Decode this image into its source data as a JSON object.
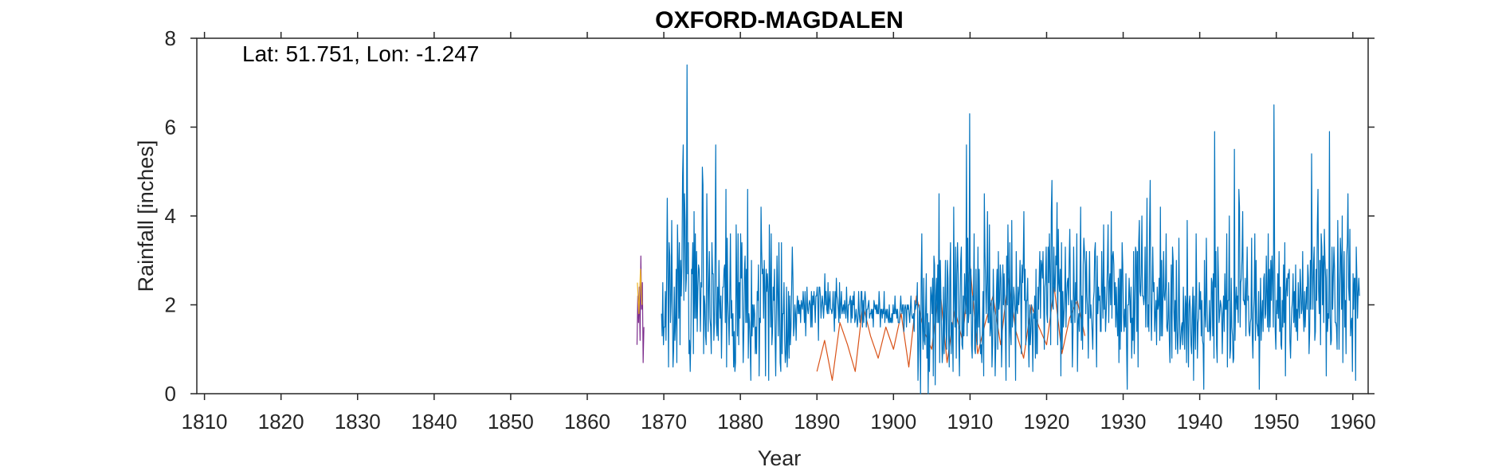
{
  "chart_data": {
    "type": "line",
    "title": "OXFORD-MAGDALEN",
    "annotation": "Lat: 51.751, Lon: -1.247",
    "xlabel": "Year",
    "ylabel": "Rainfall [inches]",
    "xlim": [
      1809,
      1962
    ],
    "ylim": [
      0,
      8
    ],
    "xticks": [
      1810,
      1820,
      1830,
      1840,
      1850,
      1860,
      1870,
      1880,
      1890,
      1900,
      1910,
      1920,
      1930,
      1940,
      1950,
      1960
    ],
    "yticks": [
      0,
      2,
      4,
      6,
      8
    ],
    "grid": false,
    "colors": {
      "main": "#0072BD",
      "secondary": "#D95319",
      "tertiary": "#EDB120",
      "fourth": "#7E2F8E"
    },
    "series": [
      {
        "color": "#7E2F8E",
        "x": [
          1866.5,
          1866.6,
          1866.7,
          1866.8,
          1866.9,
          1867.0,
          1867.1,
          1867.2,
          1867.3,
          1867.4
        ],
        "y": [
          1.1,
          2.2,
          1.6,
          2.4,
          1.2,
          3.1,
          1.9,
          2.5,
          0.7,
          1.5
        ]
      },
      {
        "color": "#EDB120",
        "x": [
          1866.55,
          1866.75,
          1866.95,
          1867.15
        ],
        "y": [
          2.5,
          1.8,
          2.8,
          2.0
        ]
      },
      {
        "color": "#D95319",
        "x": [
          1890.0,
          1891.0,
          1892.0,
          1893.0,
          1894.0,
          1895.0,
          1896.0,
          1897.0,
          1898.0,
          1899.0,
          1900.0,
          1901.0,
          1902.0,
          1903.0,
          1904.0,
          1905.0,
          1906.0,
          1907.0,
          1908.0,
          1909.0,
          1910.0,
          1911.0,
          1912.0,
          1913.0,
          1914.0,
          1915.0,
          1916.0,
          1917.0,
          1918.0,
          1919.0,
          1920.0,
          1921.0,
          1922.0,
          1923.0,
          1924.0,
          1925.0
        ],
        "y": [
          0.5,
          1.2,
          0.3,
          1.6,
          1.1,
          0.5,
          2.0,
          1.3,
          0.8,
          1.5,
          1.0,
          1.8,
          0.6,
          2.2,
          1.4,
          1.0,
          2.5,
          0.7,
          1.9,
          1.2,
          2.9,
          0.9,
          1.6,
          2.2,
          1.1,
          2.6,
          1.4,
          0.8,
          2.0,
          1.5,
          1.1,
          2.4,
          0.9,
          1.7,
          2.1,
          1.3
        ]
      },
      {
        "color": "#0072BD",
        "x_start": 1869.7,
        "x_step": 0.08333,
        "y": [
          1.8,
          1.3,
          2.5,
          1.1,
          1.5,
          1.5,
          2.3,
          1.2,
          2.6,
          4.4,
          2.7,
          0.6,
          3.4,
          3.1,
          1.6,
          2.1,
          3.9,
          2.0,
          0.6,
          1.0,
          2.4,
          1.2,
          1.6,
          2.8,
          0.7,
          3.8,
          3.0,
          1.7,
          3.4,
          1.1,
          3.0,
          2.2,
          2.9,
          4.9,
          5.6,
          2.1,
          4.5,
          3.9,
          2.3,
          2.6,
          7.4,
          2.7,
          3.4,
          0.9,
          1.2,
          0.5,
          1.3,
          2.8,
          2.7,
          3.4,
          0.9,
          4.1,
          1.7,
          3.6,
          1.7,
          3.2,
          1.4,
          2.4,
          2.9,
          2.8,
          2.3,
          1.4,
          2.5,
          2.4,
          5.1,
          4.7,
          0.9,
          2.2,
          2.0,
          1.3,
          1.1,
          4.5,
          3.0,
          1.4,
          2.4,
          3.2,
          1.7,
          1.5,
          0.9,
          3.4,
          2.7,
          2.7,
          1.2,
          1.6,
          3.2,
          5.6,
          1.6,
          1.3,
          2.4,
          1.2,
          3.0,
          2.1,
          1.7,
          2.2,
          0.8,
          1.8,
          2.4,
          2.4,
          2.8,
          2.9,
          1.6,
          4.6,
          0.6,
          3.5,
          2.1,
          1.7,
          1.1,
          2.3,
          3.6,
          1.7,
          2.1,
          1.3,
          1.8,
          0.6,
          1.4,
          0.5,
          0.7,
          3.8,
          2.3,
          1.3,
          3.6,
          1.1,
          2.5,
          1.7,
          3.6,
          2.6,
          3.4,
          1.9,
          0.7,
          1.4,
          2.8,
          3.1,
          1.6,
          2.8,
          1.6,
          4.6,
          0.8,
          1.8,
          1.6,
          1.1,
          0.3,
          3.0,
          1.3,
          2.0,
          1.5,
          2.0,
          1.8,
          0.9,
          1.5,
          0.9,
          2.3,
          2.1,
          2.9,
          0.4,
          1.7,
          1.6,
          4.2,
          3.2,
          2.7,
          2.8,
          1.7,
          3.0,
          2.4,
          0.4,
          2.8,
          2.3,
          2.7,
          2.3,
          0.3,
          3.8,
          2.6,
          1.5,
          3.6,
          1.1,
          1.4,
          2.4,
          2.1,
          2.8,
          1.3,
          0.4,
          1.8,
          3.1,
          2.2,
          1.3,
          3.4,
          1.9,
          0.7,
          0.5,
          3.4,
          0.9,
          1.8,
          1.8,
          2.5,
          1.2,
          0.7,
          0.9,
          2.4,
          0.6,
          1.1,
          2.3,
          0.8,
          2.2,
          1.1,
          1.5,
          2.4,
          3.3,
          2.6,
          1.3,
          1.5,
          2.0,
          1.8,
          1.2,
          1.9,
          2.2,
          1.8,
          2.1,
          1.8,
          2.0,
          1.6,
          2.1,
          2.0,
          1.9,
          2.3,
          2.0,
          1.6,
          2.3,
          1.3,
          1.9,
          2.4,
          1.9,
          1.8,
          2.0,
          2.1,
          2.0,
          1.5,
          2.3,
          1.5,
          2.2,
          2.0,
          2.3,
          2.0,
          1.6,
          2.2,
          2.2,
          2.4,
          2.1,
          1.2,
          2.4,
          2.4,
          2.2,
          1.7,
          2.0,
          2.2,
          2.0,
          1.7,
          2.0,
          2.7,
          2.0,
          2.3,
          1.9,
          1.8,
          2.5,
          1.8,
          2.1,
          2.3,
          1.9,
          1.9,
          1.8,
          1.9,
          2.3,
          1.9,
          1.4,
          2.3,
          1.7,
          2.6,
          2.2,
          2.1,
          1.9,
          1.6,
          2.5,
          1.7,
          2.0,
          2.3,
          1.8,
          1.9,
          2.0,
          1.8,
          2.1,
          1.9,
          1.7,
          2.4,
          1.9,
          1.6,
          2.0,
          2.0,
          2.1,
          2.2,
          1.6,
          2.1,
          1.7,
          2.2,
          2.0,
          2.3,
          1.6,
          1.7,
          1.9,
          1.7,
          1.5,
          1.7,
          2.3,
          1.8,
          1.6,
          1.8,
          2.3,
          2.3,
          1.5,
          2.1,
          1.6,
          2.1,
          2.3,
          2.1,
          1.5,
          1.9,
          1.9,
          2.0,
          2.1,
          1.7,
          1.8,
          1.8,
          1.9,
          1.7,
          1.9,
          1.5,
          2.1,
          2.0,
          1.9,
          2.0,
          1.8,
          2.0,
          1.8,
          1.8,
          2.3,
          2.0,
          1.5,
          1.9,
          1.9,
          1.7,
          1.9,
          1.8,
          2.3,
          1.6,
          1.8,
          1.9,
          1.7,
          1.9,
          1.7,
          1.6,
          2.0,
          1.6,
          1.7,
          1.6,
          1.8,
          1.6,
          2.0,
          1.8,
          1.8,
          2.2,
          1.8,
          1.9,
          1.7,
          1.9,
          1.6,
          1.6,
          1.6,
          1.9,
          2.2,
          1.9,
          1.8,
          2.0,
          2.0,
          1.4,
          1.9,
          2.0,
          1.9,
          1.5,
          2.0,
          1.9,
          2.0,
          1.8,
          1.6,
          1.9,
          2.2,
          1.8,
          1.7,
          1.7,
          1.8,
          1.4,
          2.1,
          1.9,
          2.0,
          2.0,
          2.5,
          0.3,
          1.0,
          2.0,
          1.7,
          0.0,
          2.5,
          3.6,
          1.5,
          1.0,
          2.6,
          1.2,
          1.1,
          1.9,
          2.7,
          0.8,
          1.8,
          0.0,
          1.6,
          0.5,
          1.5,
          2.4,
          2.2,
          1.8,
          2.6,
          0.4,
          3.1,
          2.9,
          0.2,
          2.2,
          2.6,
          1.6,
          2.9,
          1.6,
          4.5,
          0.7,
          3.0,
          2.2,
          1.4,
          0.7,
          1.0,
          2.4,
          0.9,
          1.8,
          3.0,
          1.4,
          1.0,
          3.0,
          2.6,
          1.3,
          0.6,
          2.7,
          3.4,
          0.9,
          1.6,
          1.5,
          0.5,
          4.2,
          2.2,
          1.5,
          3.3,
          0.8,
          2.7,
          3.4,
          2.7,
          1.2,
          0.4,
          2.1,
          3.0,
          3.3,
          1.1,
          1.0,
          2.2,
          1.3,
          2.7,
          2.2,
          1.8,
          5.6,
          1.3,
          3.5,
          1.6,
          1.8,
          6.3,
          1.8,
          2.8,
          1.1,
          0.8,
          2.2,
          2.1,
          3.6,
          1.0,
          0.9,
          2.8,
          1.5,
          1.1,
          3.3,
          1.5,
          2.8,
          1.5,
          0.9,
          1.1,
          0.7,
          1.5,
          2.3,
          0.4,
          4.5,
          3.2,
          2.5,
          1.8,
          2.5,
          4.1,
          1.6,
          1.6,
          3.8,
          1.3,
          1.5,
          2.1,
          0.6,
          1.1,
          2.8,
          1.9,
          1.8,
          0.4,
          1.1,
          2.3,
          2.8,
          1.0,
          3.2,
          1.9,
          2.1,
          2.9,
          2.6,
          0.6,
          1.3,
          2.9,
          2.0,
          2.7,
          2.1,
          1.4,
          0.3,
          3.1,
          2.0,
          3.8,
          2.6,
          0.6,
          3.4,
          1.4,
          1.1,
          3.9,
          1.5,
          1.8,
          2.4,
          2.2,
          1.9,
          0.3,
          3.2,
          1.9,
          1.8,
          2.4,
          2.0,
          2.3,
          3.0,
          2.4,
          0.9,
          2.9,
          2.5,
          2.9,
          4.1,
          2.1,
          2.8,
          1.1,
          2.1,
          2.1,
          2.6,
          1.3,
          0.6,
          2.0,
          1.1,
          1.4,
          2.0,
          1.6,
          0.5,
          1.8,
          1.7,
          2.2,
          0.8,
          2.8,
          0.9,
          0.9,
          2.4,
          1.9,
          2.6,
          3.2,
          1.7,
          3.0,
          2.9,
          2.6,
          3.2,
          2.2,
          1.0,
          2.4,
          2.6,
          3.3,
          1.8,
          1.6,
          3.3,
          2.5,
          3.6,
          2.7,
          1.1,
          4.1,
          4.8,
          2.0,
          1.9,
          3.3,
          2.4,
          2.3,
          3.1,
          2.9,
          4.3,
          1.1,
          3.7,
          2.5,
          2.3,
          2.8,
          0.4,
          3.4,
          1.0,
          2.3,
          1.5,
          1.8,
          2.2,
          3.3,
          1.5,
          2.2,
          2.5,
          2.6,
          2.0,
          3.0,
          3.7,
          2.2,
          1.6,
          2.1,
          0.6,
          1.4,
          3.3,
          2.2,
          1.6,
          2.5,
          2.1,
          3.6,
          0.5,
          1.6,
          1.8,
          1.4,
          2.6,
          4.2,
          1.2,
          2.2,
          1.0,
          2.9,
          3.5,
          3.2,
          2.9,
          1.8,
          3.2,
          2.2,
          1.8,
          0.8,
          2.3,
          3.2,
          1.7,
          2.0,
          1.7,
          1.4,
          1.0,
          2.1,
          2.3,
          3.2,
          3.4,
          1.6,
          0.6,
          3.1,
          1.8,
          2.4,
          2.1,
          2.2,
          1.4,
          1.4,
          3.2,
          2.3,
          1.7,
          3.8,
          1.9,
          2.4,
          1.4,
          1.8,
          2.3,
          2.9,
          3.8,
          1.6,
          2.5,
          2.7,
          2.0,
          4.1,
          1.7,
          3.1,
          3.2,
          2.9,
          2.0,
          2.5,
          1.5,
          2.4,
          1.7,
          1.3,
          2.6,
          0.7,
          2.8,
          1.0,
          2.8,
          1.4,
          3.4,
          2.9,
          1.8,
          1.4,
          1.9,
          1.5,
          2.7,
          1.1,
          0.1,
          2.0,
          2.0,
          2.6,
          2.1,
          1.6,
          2.4,
          0.8,
          1.7,
          1.2,
          3.2,
          0.9,
          1.8,
          3.3,
          3.2,
          1.4,
          3.2,
          0.6,
          3.4,
          3.9,
          2.3,
          2.2,
          2.7,
          4.0,
          2.2,
          2.2,
          2.0,
          2.2,
          3.3,
          1.5,
          2.4,
          4.4,
          1.5,
          2.0,
          1.4,
          3.7,
          4.8,
          2.1,
          1.2,
          2.2,
          3.3,
          2.3,
          2.5,
          1.4,
          1.8,
          2.1,
          1.1,
          2.4,
          1.9,
          2.0,
          2.6,
          1.2,
          4.2,
          1.3,
          3.0,
          1.3,
          2.1,
          3.2,
          2.2,
          2.1,
          2.4,
          3.6,
          1.5,
          1.4,
          1.7,
          2.5,
          1.2,
          0.7,
          1.8,
          2.9,
          0.8,
          3.3,
          3.0,
          1.9,
          1.4,
          2.1,
          1.0,
          3.0,
          1.5,
          0.9,
          1.4,
          3.5,
          1.8,
          1.0,
          1.2,
          1.5,
          1.6,
          1.1,
          2.4,
          1.5,
          1.0,
          2.2,
          2.0,
          0.7,
          3.9,
          1.6,
          0.6,
          2.0,
          2.2,
          1.8,
          1.1,
          0.9,
          1.9,
          2.4,
          0.3,
          2.2,
          1.5,
          1.0,
          3.6,
          2.2,
          0.8,
          1.6,
          1.7,
          2.5,
          1.9,
          2.3,
          1.3,
          2.1,
          1.2,
          1.1,
          0.1,
          3.0,
          1.8,
          1.5,
          3.5,
          2.1,
          1.4,
          1.4,
          1.4,
          2.1,
          1.2,
          1.5,
          2.6,
          2.5,
          1.3,
          2.7,
          0.8,
          5.9,
          2.4,
          3.2,
          1.1,
          0.7,
          3.3,
          2.6,
          1.6,
          1.8,
          2.1,
          2.0,
          1.8,
          0.9,
          1.8,
          2.2,
          1.4,
          2.7,
          1.9,
          1.9,
          3.6,
          0.6,
          2.1,
          2.1,
          4.0,
          0.8,
          1.0,
          2.6,
          1.5,
          1.3,
          0.7,
          0.8,
          5.5,
          1.2,
          2.0,
          2.4,
          1.9,
          2.2,
          1.6,
          4.6,
          4.2,
          1.5,
          2.5,
          2.6,
          3.1,
          4.1,
          2.1,
          2.1,
          2.0,
          2.6,
          1.3,
          2.3,
          3.3,
          2.1,
          2.2,
          1.4,
          1.3,
          1.6,
          1.7,
          3.5,
          1.3,
          0.8,
          1.8,
          2.2,
          3.6,
          1.2,
          3.0,
          1.6,
          1.5,
          1.3,
          2.3,
          0.1,
          1.6,
          2.6,
          1.2,
          1.8,
          2.1,
          1.4,
          2.6,
          2.7,
          1.7,
          1.8,
          3.1,
          2.2,
          1.5,
          3.6,
          1.4,
          2.8,
          1.5,
          3.0,
          2.1,
          3.1,
          2.6,
          1.5,
          6.5,
          3.1,
          1.4,
          1.0,
          2.1,
          1.8,
          2.7,
          1.7,
          3.2,
          1.4,
          2.4,
          1.1,
          1.0,
          2.1,
          1.5,
          2.9,
          1.6,
          3.4,
          0.4,
          2.3,
          2.6,
          2.2,
          2.7,
          2.6,
          2.8,
          1.2,
          0.8,
          1.5,
          1.9,
          2.1,
          2.7,
          1.6,
          2.3,
          1.5,
          2.9,
          1.4,
          1.9,
          1.2,
          2.5,
          2.0,
          1.7,
          2.8,
          2.4,
          1.8,
          1.9,
          3.2,
          1.8,
          1.4,
          2.3,
          1.5,
          2.0,
          2.4,
          1.9,
          2.9,
          2.6,
          0.9,
          1.4,
          3.0,
          1.9,
          5.4,
          2.8,
          1.9,
          2.9,
          3.3,
          1.2,
          1.4,
          2.8,
          2.1,
          3.8,
          4.6,
          2.3,
          1.8,
          3.0,
          1.1,
          3.6,
          3.3,
          2.0,
          3.1,
          1.6,
          3.7,
          3.0,
          2.6,
          0.4,
          2.8,
          1.4,
          1.8,
          1.7,
          5.9,
          1.8,
          1.1,
          1.2,
          3.3,
          1.9,
          2.6,
          3.3,
          2.8,
          1.6,
          1.6,
          1.5,
          1.0,
          3.9,
          2.6,
          1.0,
          2.2,
          3.5,
          3.1,
          1.9,
          4.0,
          0.7,
          2.5,
          3.2,
          1.5,
          2.1,
          0.9,
          3.1,
          3.4,
          4.5,
          2.4,
          2.1,
          3.7,
          1.3,
          1.6,
          1.7,
          0.5,
          2.7,
          1.9,
          2.6,
          2.6,
          0.3,
          3.3,
          2.6,
          1.7,
          2.3,
          2.6,
          2.2
        ]
      }
    ]
  }
}
